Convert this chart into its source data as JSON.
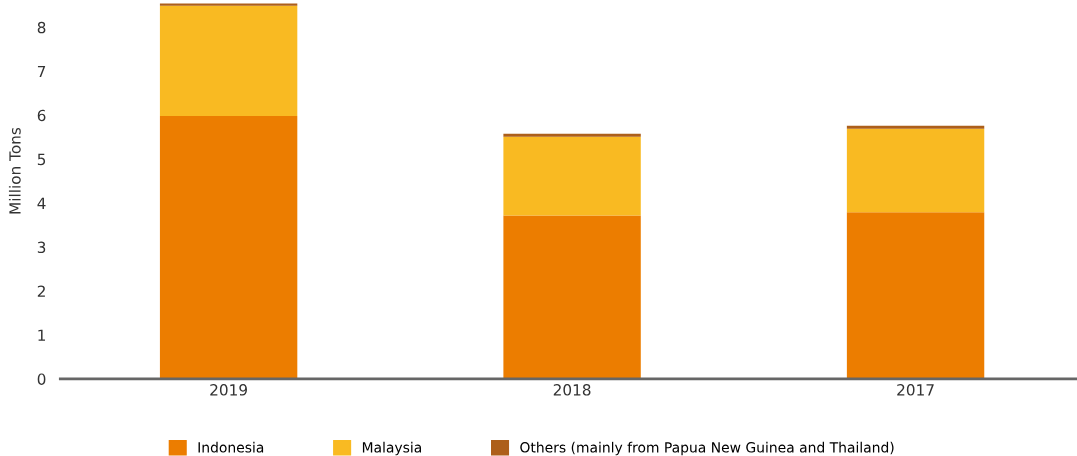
{
  "chart_data": {
    "type": "bar",
    "stacked": true,
    "ylabel": "Million Tons",
    "categories": [
      "2019",
      "2018",
      "2017"
    ],
    "series": [
      {
        "name": "Indonesia",
        "color": "#ec7d00",
        "values": [
          5.98,
          3.72,
          3.79
        ]
      },
      {
        "name": "Malaysia",
        "color": "#f9ba22",
        "values": [
          2.51,
          1.79,
          1.9
        ]
      },
      {
        "name": "Others (mainly from Papua New Guinea and Thailand)",
        "color": "#ad5f1a",
        "values": [
          0.05,
          0.07,
          0.07
        ]
      }
    ],
    "ylim": [
      0,
      8.6
    ],
    "yticks": [
      0,
      1,
      2,
      3,
      4,
      5,
      6,
      7,
      8
    ],
    "grid": false,
    "legend": "bottom"
  }
}
